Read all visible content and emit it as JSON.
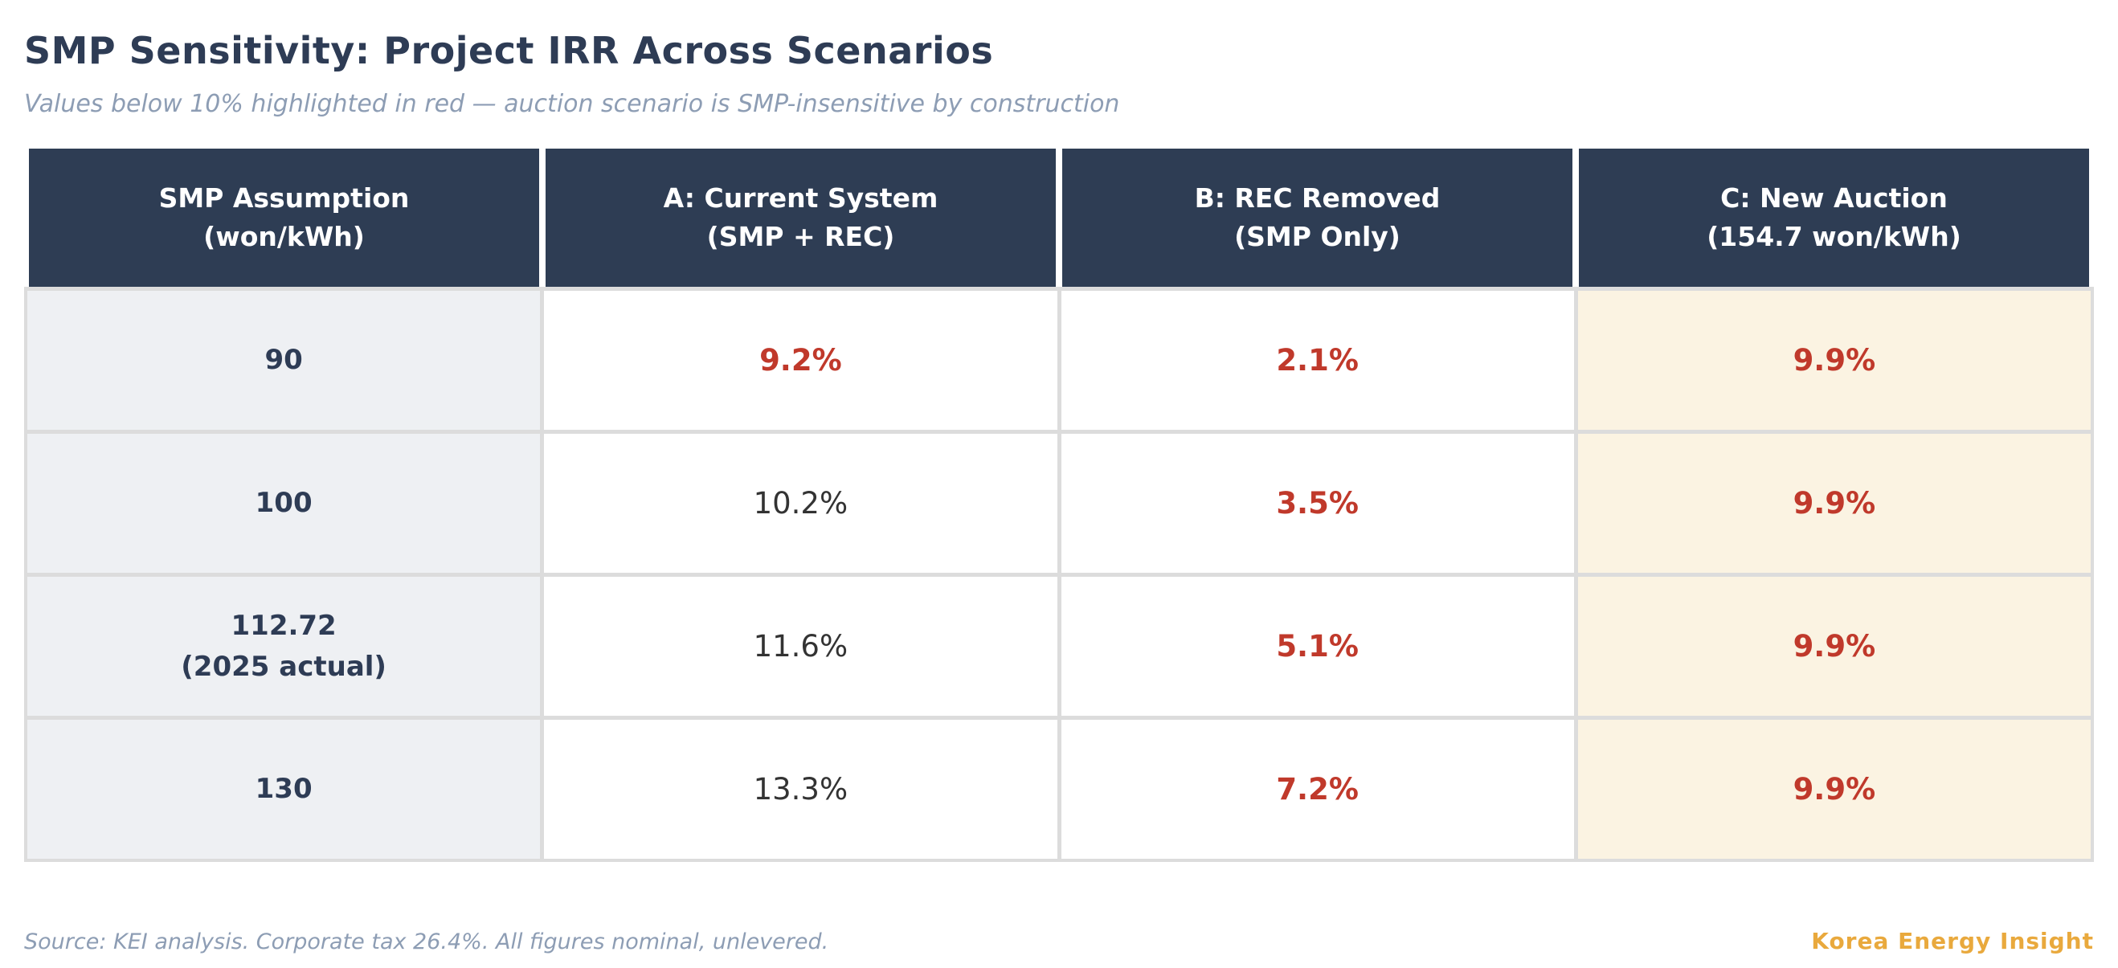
{
  "page": {
    "title": "SMP Sensitivity: Project IRR Across Scenarios",
    "subtitle": "Values below 10% highlighted in red — auction scenario is SMP-insensitive by construction",
    "footer_source": "Source: KEI analysis. Corporate tax 26.4%. All figures nominal, unlevered.",
    "brand": "Korea Energy Insight"
  },
  "colors": {
    "title_navy": "#2e3c55",
    "subtitle_gray_blue": "#8d9db4",
    "header_bg": "#2e3d54",
    "header_text": "#ffffff",
    "row_label_bg": "#eef0f3",
    "auction_col_bg": "#fbf3e2",
    "low_value_red": "#c0392b",
    "normal_value": "#333333",
    "grid_border": "#dcdcdc",
    "brand_orange": "#e9a93d"
  },
  "table": {
    "headers": [
      {
        "line1": "SMP Assumption",
        "line2": "(won/kWh)"
      },
      {
        "line1": "A: Current System",
        "line2": "(SMP + REC)"
      },
      {
        "line1": "B: REC Removed",
        "line2": "(SMP Only)"
      },
      {
        "line1": "C: New Auction",
        "line2": "(154.7 won/kWh)"
      }
    ],
    "rows": [
      {
        "label": "90",
        "label2": "",
        "values": [
          {
            "text": "9.2%",
            "low": true
          },
          {
            "text": "2.1%",
            "low": true
          },
          {
            "text": "9.9%",
            "low": true
          }
        ]
      },
      {
        "label": "100",
        "label2": "",
        "values": [
          {
            "text": "10.2%",
            "low": false
          },
          {
            "text": "3.5%",
            "low": true
          },
          {
            "text": "9.9%",
            "low": true
          }
        ]
      },
      {
        "label": "112.72",
        "label2": "(2025 actual)",
        "values": [
          {
            "text": "11.6%",
            "low": false
          },
          {
            "text": "5.1%",
            "low": true
          },
          {
            "text": "9.9%",
            "low": true
          }
        ]
      },
      {
        "label": "130",
        "label2": "",
        "values": [
          {
            "text": "13.3%",
            "low": false
          },
          {
            "text": "7.2%",
            "low": true
          },
          {
            "text": "9.9%",
            "low": true
          }
        ]
      }
    ]
  },
  "chart_data": {
    "type": "table",
    "title": "SMP Sensitivity: Project IRR Across Scenarios",
    "subtitle": "Values below 10% highlighted in red — auction scenario is SMP-insensitive by construction",
    "columns": [
      "SMP Assumption (won/kWh)",
      "A: Current System (SMP + REC)",
      "B: REC Removed (SMP Only)",
      "C: New Auction (154.7 won/kWh)"
    ],
    "rows": [
      [
        "90",
        "9.2%",
        "2.1%",
        "9.9%"
      ],
      [
        "100",
        "10.2%",
        "3.5%",
        "9.9%"
      ],
      [
        "112.72 (2025 actual)",
        "11.6%",
        "5.1%",
        "9.9%"
      ],
      [
        "130",
        "13.3%",
        "7.2%",
        "9.9%"
      ]
    ],
    "highlight_rules": {
      "red_values_below_percent": 10,
      "highlighted_column": "C: New Auction (154.7 won/kWh)"
    },
    "source": "Source: KEI analysis. Corporate tax 26.4%. All figures nominal, unlevered."
  }
}
